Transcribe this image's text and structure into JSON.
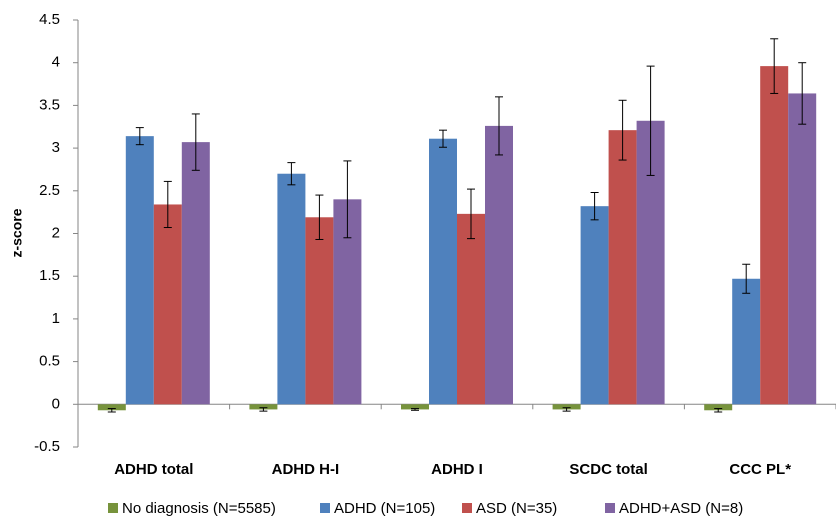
{
  "chart_data": {
    "type": "bar",
    "y_label": "z-score",
    "categories": [
      "ADHD total",
      "ADHD H-I",
      "ADHD I",
      "SCDC total",
      "CCC PL*"
    ],
    "series": [
      {
        "name": "No diagnosis (N=5585)",
        "color": "#77933c",
        "values": [
          -0.07,
          -0.06,
          -0.06,
          -0.06,
          -0.07
        ],
        "errors": [
          0.02,
          0.02,
          0.01,
          0.02,
          0.02
        ]
      },
      {
        "name": "ADHD (N=105)",
        "color": "#4f81bd",
        "values": [
          3.14,
          2.7,
          3.11,
          2.32,
          1.47
        ],
        "errors": [
          0.1,
          0.13,
          0.1,
          0.16,
          0.17
        ]
      },
      {
        "name": "ASD (N=35)",
        "color": "#c0504d",
        "values": [
          2.34,
          2.19,
          2.23,
          3.21,
          3.96
        ],
        "errors": [
          0.27,
          0.26,
          0.29,
          0.35,
          0.32
        ]
      },
      {
        "name": "ADHD+ASD (N=8)",
        "color": "#8064a2",
        "values": [
          3.07,
          2.4,
          3.26,
          3.32,
          3.64
        ],
        "errors": [
          0.33,
          0.45,
          0.34,
          0.64,
          0.36
        ]
      }
    ],
    "ylim": [
      -0.5,
      4.5
    ],
    "yticks": [
      -0.5,
      0,
      0.5,
      1,
      1.5,
      2,
      2.5,
      3,
      3.5,
      4,
      4.5
    ],
    "grid": false,
    "legend": "bottom"
  }
}
